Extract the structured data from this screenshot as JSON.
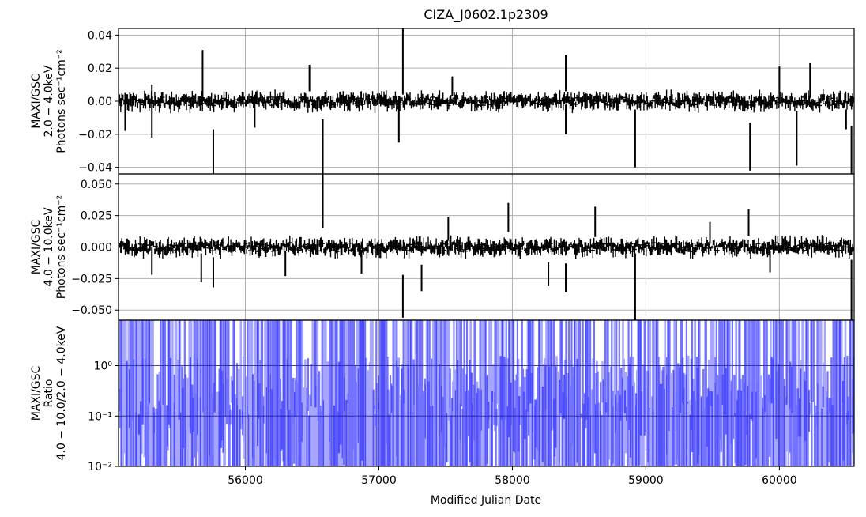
{
  "chart_data": {
    "type": "line",
    "title": "CIZA_J0602.1p2309",
    "xlabel": "Modified Julian Date",
    "xlim": [
      55050,
      60560
    ],
    "x_ticks": [
      56000,
      57000,
      58000,
      59000,
      60000
    ],
    "x_tick_labels": [
      "56000",
      "57000",
      "58000",
      "59000",
      "60000"
    ],
    "grid": true,
    "panels": [
      {
        "name": "soft-band",
        "ylabel_lines": [
          "MAXI/GSC",
          "2.0 − 4.0keV",
          "Photons sec⁻¹cm⁻²"
        ],
        "ylim": [
          -0.044,
          0.044
        ],
        "y_ticks": [
          -0.04,
          -0.02,
          0.0,
          0.02,
          0.04
        ],
        "y_tick_labels": [
          "−0.04",
          "−0.02",
          "0.00",
          "0.02",
          "0.04"
        ],
        "scale": "linear",
        "color": "#000000",
        "spikes": [
          {
            "x": 55100,
            "lo": -0.018,
            "hi": 0.005
          },
          {
            "x": 55300,
            "lo": -0.022,
            "hi": 0.01
          },
          {
            "x": 55680,
            "lo": 0.002,
            "hi": 0.031
          },
          {
            "x": 55760,
            "lo": -0.044,
            "hi": -0.017
          },
          {
            "x": 56070,
            "lo": -0.016,
            "hi": 0.004
          },
          {
            "x": 56480,
            "lo": 0.006,
            "hi": 0.022
          },
          {
            "x": 56580,
            "lo": -0.044,
            "hi": -0.011
          },
          {
            "x": 57150,
            "lo": -0.025,
            "hi": 0.003
          },
          {
            "x": 57180,
            "lo": 0.004,
            "hi": 0.044
          },
          {
            "x": 57550,
            "lo": 0.003,
            "hi": 0.015
          },
          {
            "x": 58400,
            "lo": 0.006,
            "hi": 0.028
          },
          {
            "x": 58400,
            "lo": -0.02,
            "hi": -0.002
          },
          {
            "x": 58920,
            "lo": -0.04,
            "hi": -0.005
          },
          {
            "x": 59780,
            "lo": -0.042,
            "hi": -0.013
          },
          {
            "x": 60000,
            "lo": 0.003,
            "hi": 0.021
          },
          {
            "x": 60130,
            "lo": -0.039,
            "hi": -0.006
          },
          {
            "x": 60230,
            "lo": 0.002,
            "hi": 0.023
          },
          {
            "x": 60500,
            "lo": -0.017,
            "hi": -0.005
          },
          {
            "x": 60540,
            "lo": -0.044,
            "hi": -0.015
          }
        ]
      },
      {
        "name": "hard-band",
        "ylabel_lines": [
          "MAXI/GSC",
          "4.0 − 10.0keV",
          "Photons sec⁻¹cm⁻²"
        ],
        "ylim": [
          -0.058,
          0.058
        ],
        "y_ticks": [
          -0.05,
          -0.025,
          0.0,
          0.025,
          0.05
        ],
        "y_tick_labels": [
          "−0.050",
          "−0.025",
          "0.000",
          "0.025",
          "0.050"
        ],
        "scale": "linear",
        "color": "#000000",
        "spikes": [
          {
            "x": 55300,
            "lo": -0.022,
            "hi": 0.0
          },
          {
            "x": 55670,
            "lo": -0.028,
            "hi": -0.005
          },
          {
            "x": 55760,
            "lo": -0.032,
            "hi": -0.008
          },
          {
            "x": 56300,
            "lo": -0.023,
            "hi": -0.003
          },
          {
            "x": 56580,
            "lo": 0.015,
            "hi": 0.058
          },
          {
            "x": 56870,
            "lo": -0.021,
            "hi": -0.002
          },
          {
            "x": 57180,
            "lo": -0.056,
            "hi": -0.022
          },
          {
            "x": 57320,
            "lo": -0.035,
            "hi": -0.014
          },
          {
            "x": 57520,
            "lo": 0.005,
            "hi": 0.024
          },
          {
            "x": 57970,
            "lo": 0.012,
            "hi": 0.035
          },
          {
            "x": 58270,
            "lo": -0.031,
            "hi": -0.012
          },
          {
            "x": 58400,
            "lo": -0.036,
            "hi": -0.013
          },
          {
            "x": 58620,
            "lo": 0.008,
            "hi": 0.032
          },
          {
            "x": 58920,
            "lo": -0.058,
            "hi": -0.005
          },
          {
            "x": 59480,
            "lo": 0.004,
            "hi": 0.02
          },
          {
            "x": 59770,
            "lo": 0.009,
            "hi": 0.03
          },
          {
            "x": 59930,
            "lo": -0.02,
            "hi": -0.003
          },
          {
            "x": 60540,
            "lo": -0.058,
            "hi": -0.01
          }
        ]
      },
      {
        "name": "hardness-ratio",
        "ylabel_lines": [
          "MAXI/GSC",
          "Ratio",
          "4.0 − 10.0/2.0 − 4.0keV"
        ],
        "ylim": [
          0.01,
          8.0
        ],
        "y_ticks": [
          0.01,
          0.1,
          1.0
        ],
        "y_tick_labels": [
          "10⁻²",
          "10⁻¹",
          "10⁰"
        ],
        "scale": "log",
        "color": "#0000ff",
        "hlines": [
          0.1,
          1.0
        ]
      }
    ]
  }
}
